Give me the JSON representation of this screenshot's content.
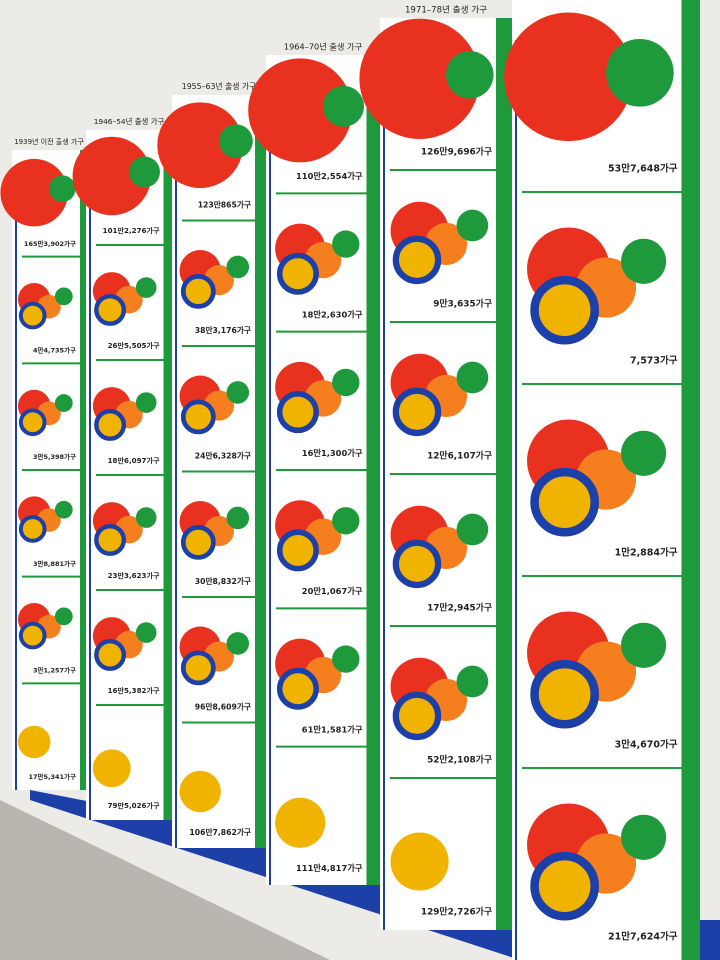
{
  "columns": [
    {
      "header": "1939년 이전 출생 가구",
      "labels": [
        "165만3,902가구",
        "4만4,735가구",
        "3만5,398가구",
        "3만8,881가구",
        "3만1,257가구",
        "17만5,341가구"
      ]
    },
    {
      "header": "1946–54년 출생 가구",
      "labels": [
        "101만2,276가구",
        "26만5,505가구",
        "18만6,097가구",
        "23만3,623가구",
        "16만5,382가구",
        "79만5,026가구"
      ]
    },
    {
      "header": "1955–63년 출생 가구",
      "labels": [
        "123만865가구",
        "38만3,176가구",
        "24만6,328가구",
        "30만8,832가구",
        "96만8,609가구",
        "106만7,862가구"
      ]
    },
    {
      "header": "1964–70년 출생 가구",
      "labels": [
        "110만2,554가구",
        "18만2,630가구",
        "16만1,300가구",
        "20만1,067가구",
        "61만1,581가구",
        "111만4,817가구"
      ]
    },
    {
      "header": "1971–78년 출생 가구",
      "labels": [
        "126만9,696가구",
        "9만3,635가구",
        "12만6,107가구",
        "17만2,945가구",
        "52만2,108가구",
        "129만2,726가구"
      ]
    },
    {
      "labels": [
        "53만7,648가구",
        "7,573가구",
        "1만2,884가구",
        "3만4,670가구",
        "21만7,624가구"
      ]
    }
  ]
}
